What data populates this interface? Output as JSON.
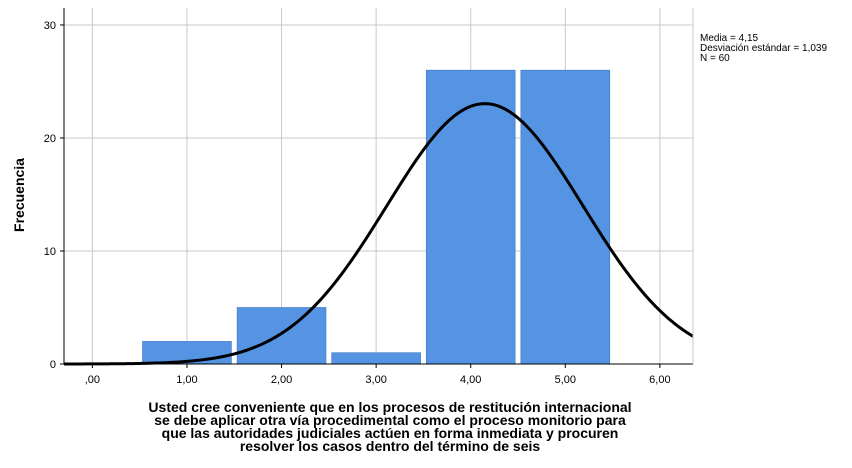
{
  "chart_data": {
    "type": "bar",
    "subtype": "histogram-with-normal-curve",
    "categories": [
      ".00",
      "1,00",
      "2,00",
      "3,00",
      "4,00",
      "5,00"
    ],
    "x": [
      0,
      1,
      2,
      3,
      4,
      5
    ],
    "values": [
      0,
      2,
      5,
      1,
      26,
      26
    ],
    "bar_color": "#5593e3",
    "curve_color": "#000000",
    "x_ticks": [
      ",00",
      "1,00",
      "2,00",
      "3,00",
      "4,00",
      "5,00",
      "6,00"
    ],
    "x_tick_values": [
      0,
      1,
      2,
      3,
      4,
      5,
      6
    ],
    "y_ticks": [
      "0",
      "10",
      "20",
      "30"
    ],
    "y_tick_values": [
      0,
      10,
      20,
      30
    ],
    "xlim": [
      -0.3,
      6.35
    ],
    "ylim": [
      0,
      31.5
    ],
    "ylabel": "Frecuencia",
    "grid": true,
    "normal_curve": {
      "mean": 4.15,
      "sd": 1.039,
      "n": 60,
      "bin_width": 1
    },
    "stats_box": [
      "Media = 4,15",
      "Desviación estándar = 1,039",
      "N = 60"
    ],
    "xlabel_lines": [
      "Usted cree conveniente que en los procesos de restitución internacional",
      "se debe aplicar otra vía procedimental como el proceso monitorio para",
      "que las autoridades judiciales actúen en forma inmediata y procuren",
      "resolver los casos dentro del término de seis"
    ]
  }
}
